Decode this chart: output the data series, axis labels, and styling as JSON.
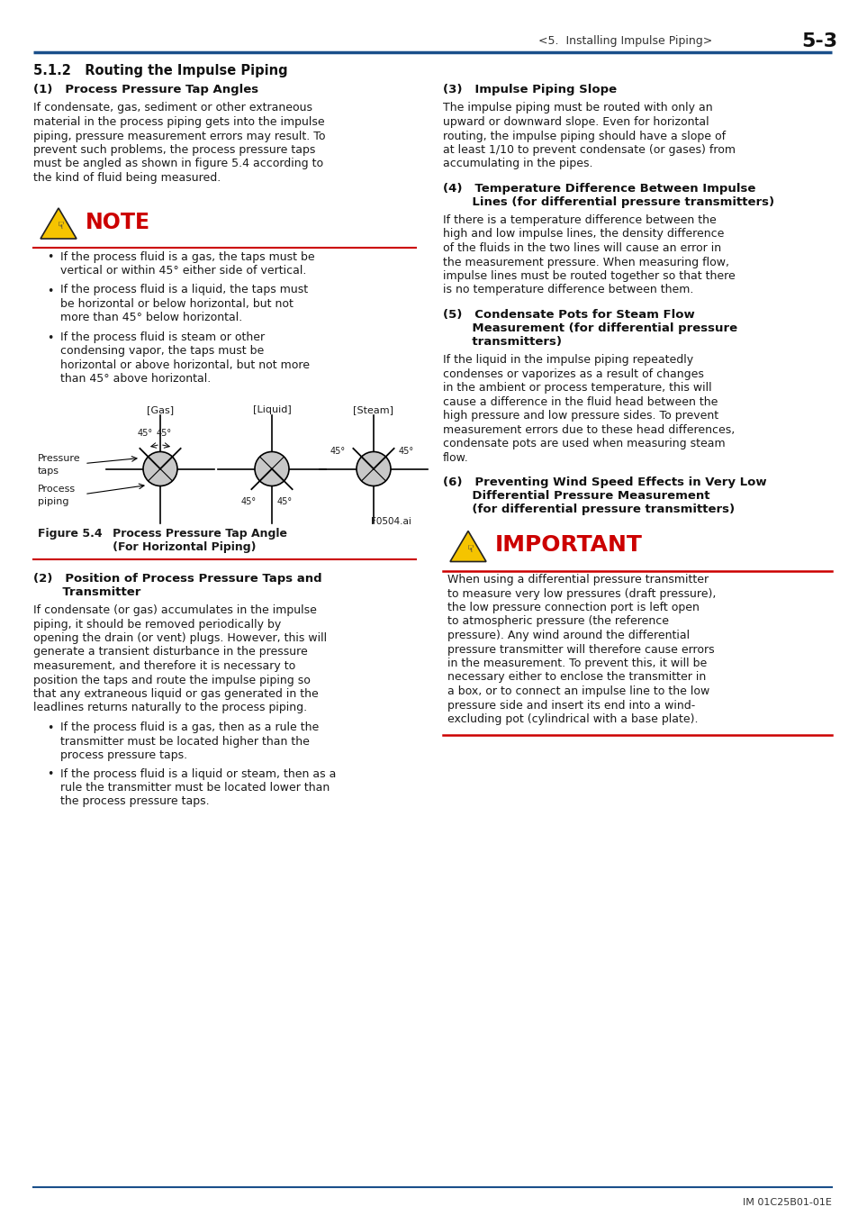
{
  "page_header_center": "<5.  Installing Impulse Piping>",
  "page_header_right": "5-3",
  "header_line_color": "#1a4f8a",
  "section_title": "5.1.2   Routing the Impulse Piping",
  "col1_heading1": "(1)   Process Pressure Tap Angles",
  "col1_para1_lines": [
    "If condensate, gas, sediment or other extraneous",
    "material in the process piping gets into the impulse",
    "piping, pressure measurement errors may result. To",
    "prevent such problems, the process pressure taps",
    "must be angled as shown in figure 5.4 according to",
    "the kind of fluid being measured."
  ],
  "note_label": "NOTE",
  "note_bullet1_lines": [
    "If the process fluid is a gas, the taps must be",
    "vertical or within 45° either side of vertical."
  ],
  "note_bullet2_lines": [
    "If the process fluid is a liquid, the taps must",
    "be horizontal or below horizontal, but not",
    "more than 45° below horizontal."
  ],
  "note_bullet3_lines": [
    "If the process fluid is steam or other",
    "condensing vapor, the taps must be",
    "horizontal or above horizontal, but not more",
    "than 45° above horizontal."
  ],
  "fig_gas_label": "[Gas]",
  "fig_liquid_label": "[Liquid]",
  "fig_steam_label": "[Steam]",
  "pressure_taps_label": "Pressure\ntaps",
  "process_piping_label": "Process\npiping",
  "fig_id": "F0504.ai",
  "fig_caption_bold": "Figure 5.4",
  "fig_caption_text1": "Process Pressure Tap Angle",
  "fig_caption_text2": "(For Horizontal Piping)",
  "col1_heading2a": "(2)   Position of Process Pressure Taps and",
  "col1_heading2b": "       Transmitter",
  "col1_para2_lines": [
    "If condensate (or gas) accumulates in the impulse",
    "piping, it should be removed periodically by",
    "opening the drain (or vent) plugs. However, this will",
    "generate a transient disturbance in the pressure",
    "measurement, and therefore it is necessary to",
    "position the taps and route the impulse piping so",
    "that any extraneous liquid or gas generated in the",
    "leadlines returns naturally to the process piping."
  ],
  "col1_bullet1_lines": [
    "If the process fluid is a gas, then as a rule the",
    "transmitter must be located higher than the",
    "process pressure taps."
  ],
  "col1_bullet2_lines": [
    "If the process fluid is a liquid or steam, then as a",
    "rule the transmitter must be located lower than",
    "the process pressure taps."
  ],
  "col2_heading1": "(3)   Impulse Piping Slope",
  "col2_para1_lines": [
    "The impulse piping must be routed with only an",
    "upward or downward slope. Even for horizontal",
    "routing, the impulse piping should have a slope of",
    "at least 1/10 to prevent condensate (or gases) from",
    "accumulating in the pipes."
  ],
  "col2_heading2a": "(4)   Temperature Difference Between Impulse",
  "col2_heading2b": "       Lines (for differential pressure transmitters)",
  "col2_para2_lines": [
    "If there is a temperature difference between the",
    "high and low impulse lines, the density difference",
    "of the fluids in the two lines will cause an error in",
    "the measurement pressure. When measuring flow,",
    "impulse lines must be routed together so that there",
    "is no temperature difference between them."
  ],
  "col2_heading3a": "(5)   Condensate Pots for Steam Flow",
  "col2_heading3b": "       Measurement (for differential pressure",
  "col2_heading3c": "       transmitters)",
  "col2_para3_lines": [
    "If the liquid in the impulse piping repeatedly",
    "condenses or vaporizes as a result of changes",
    "in the ambient or process temperature, this will",
    "cause a difference in the fluid head between the",
    "high pressure and low pressure sides. To prevent",
    "measurement errors due to these head differences,",
    "condensate pots are used when measuring steam",
    "flow."
  ],
  "col2_heading4a": "(6)   Preventing Wind Speed Effects in Very Low",
  "col2_heading4b": "       Differential Pressure Measurement",
  "col2_heading4c": "       (for differential pressure transmitters)",
  "important_label": "IMPORTANT",
  "imp_para_lines": [
    "When using a differential pressure transmitter",
    "to measure very low pressures (draft pressure),",
    "the low pressure connection port is left open",
    "to atmospheric pressure (the reference",
    "pressure). Any wind around the differential",
    "pressure transmitter will therefore cause errors",
    "in the measurement. To prevent this, it will be",
    "necessary either to enclose the transmitter in",
    "a box, or to connect an impulse line to the low",
    "pressure side and insert its end into a wind-",
    "excluding pot (cylindrical with a base plate)."
  ],
  "footer_text": "IM 01C25B01-01E",
  "red_color": "#cc0000",
  "blue_color": "#1a4f8a",
  "text_color": "#1a1a1a",
  "bg_color": "#ffffff",
  "note_icon_color": "#f5c400",
  "gray_circle": "#c8c8c8"
}
